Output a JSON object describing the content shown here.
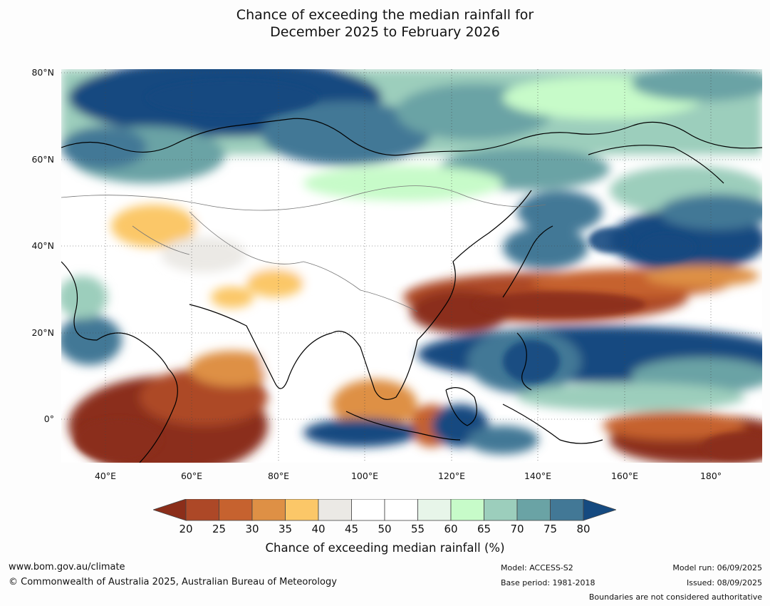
{
  "title_line1": "Chance of exceeding the median rainfall for",
  "title_line2": "December 2025 to February 2026",
  "map": {
    "lat_labels": [
      "80°N",
      "60°N",
      "40°N",
      "20°N",
      "0°"
    ],
    "lon_labels": [
      "40°E",
      "60°E",
      "80°E",
      "100°E",
      "120°E",
      "140°E",
      "160°E",
      "180°"
    ],
    "lat_range": [
      -10,
      80
    ],
    "lon_range": [
      30,
      192
    ]
  },
  "colorbar": {
    "ticks": [
      "20",
      "25",
      "30",
      "35",
      "40",
      "45",
      "50",
      "55",
      "60",
      "65",
      "70",
      "75",
      "80"
    ],
    "colors": [
      "#8b2e1a",
      "#ad4827",
      "#c6622f",
      "#de9045",
      "#fbc768",
      "#ebe9e5",
      "#ffffff",
      "#ffffff",
      "#e7f5e9",
      "#c7fbc9",
      "#9ccebc",
      "#6aa3a5",
      "#427896",
      "#154a80"
    ],
    "label": "Chance of exceeding median rainfall (%)"
  },
  "footer": {
    "website": "www.bom.gov.au/climate",
    "copyright": "© Commonwealth of Australia 2025, Australian Bureau of Meteorology",
    "model": "Model: ACCESS-S2",
    "base_period": "Base period: 1981-2018",
    "model_run": "Model run: 06/09/2025",
    "issued": "Issued: 08/09/2025",
    "disclaimer": "Boundaries are not considered authoritative"
  }
}
